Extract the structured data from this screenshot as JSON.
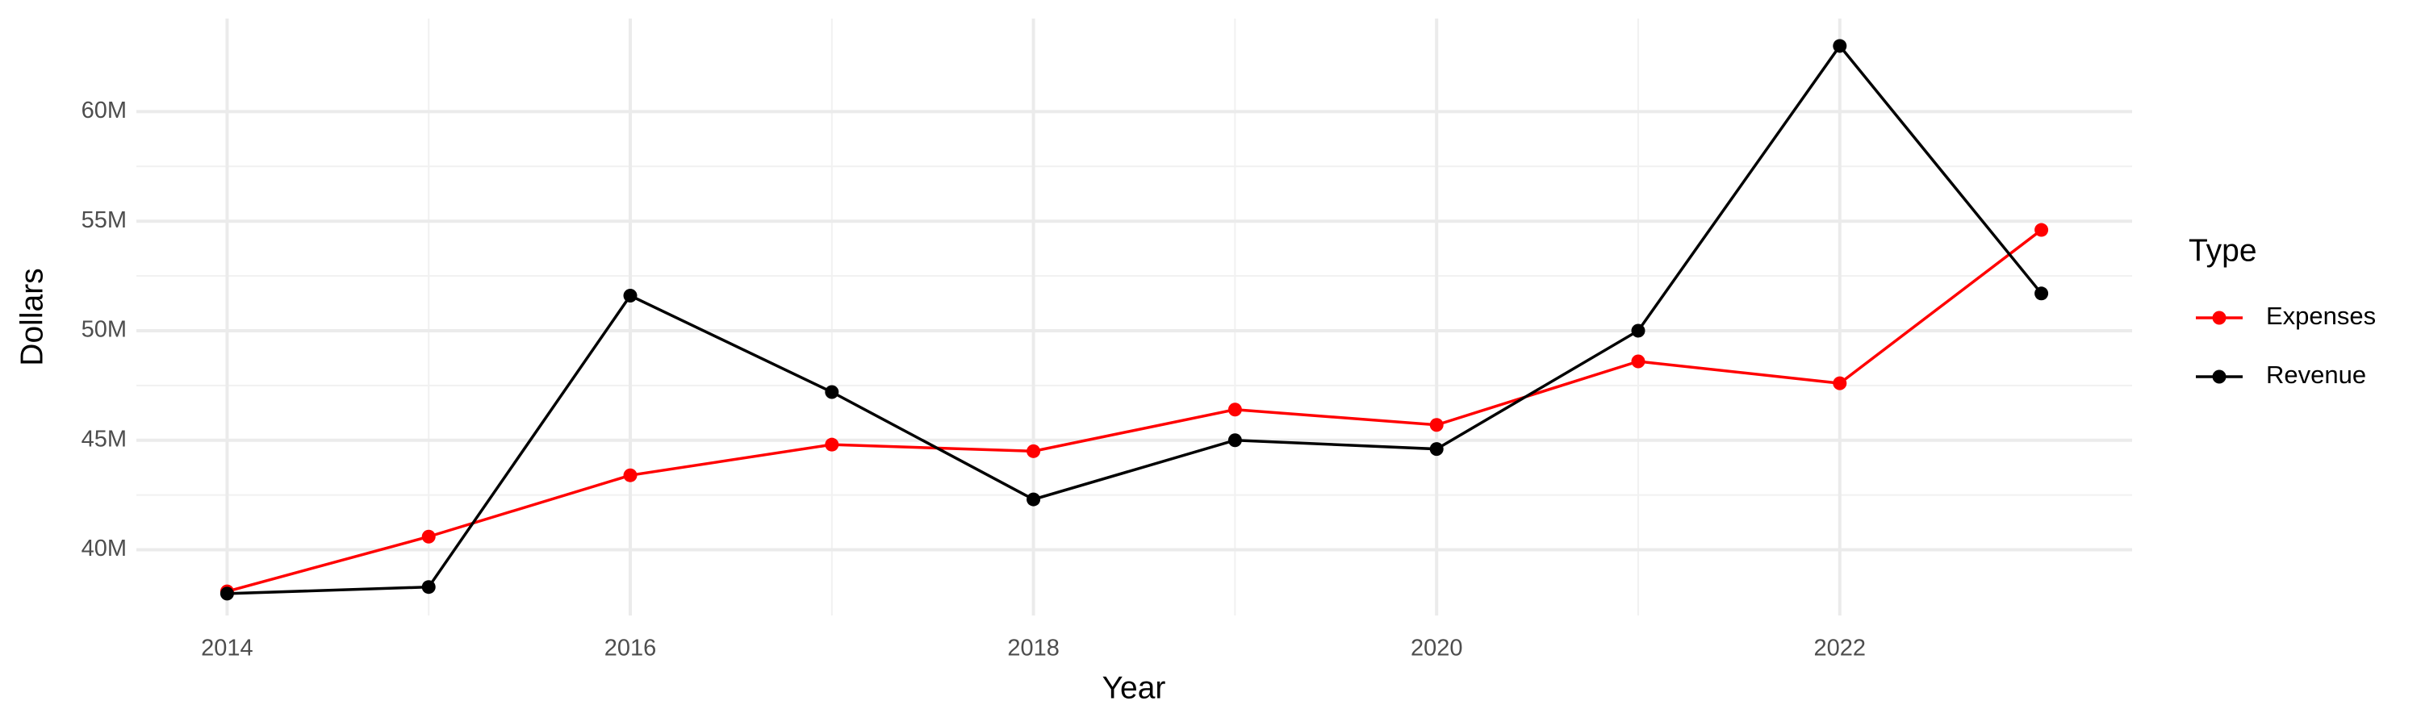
{
  "chart_data": {
    "type": "line",
    "x_label": "Year",
    "y_label": "Dollars",
    "legend_title": "Type",
    "x": [
      2014,
      2015,
      2016,
      2017,
      2018,
      2019,
      2020,
      2021,
      2022,
      2023
    ],
    "series": [
      {
        "name": "Expenses",
        "color": "#ff0000",
        "values": [
          38100000,
          40600000,
          43400000,
          44800000,
          44500000,
          46400000,
          45700000,
          48600000,
          47600000,
          54600000
        ]
      },
      {
        "name": "Revenue",
        "color": "#000000",
        "values": [
          38000000,
          38300000,
          51600000,
          47200000,
          42300000,
          45000000,
          44600000,
          50000000,
          63000000,
          51700000
        ]
      }
    ],
    "xlim": [
      2013.55,
      2023.45
    ],
    "xticks": [
      2014,
      2016,
      2018,
      2020,
      2022
    ],
    "ylim": [
      37000000,
      64250000
    ],
    "yticks": [
      {
        "value": 40000000,
        "label": "40M"
      },
      {
        "value": 45000000,
        "label": "45M"
      },
      {
        "value": 50000000,
        "label": "50M"
      },
      {
        "value": 55000000,
        "label": "55M"
      },
      {
        "value": 60000000,
        "label": "60M"
      }
    ],
    "grid": true,
    "legend_position": "right"
  }
}
